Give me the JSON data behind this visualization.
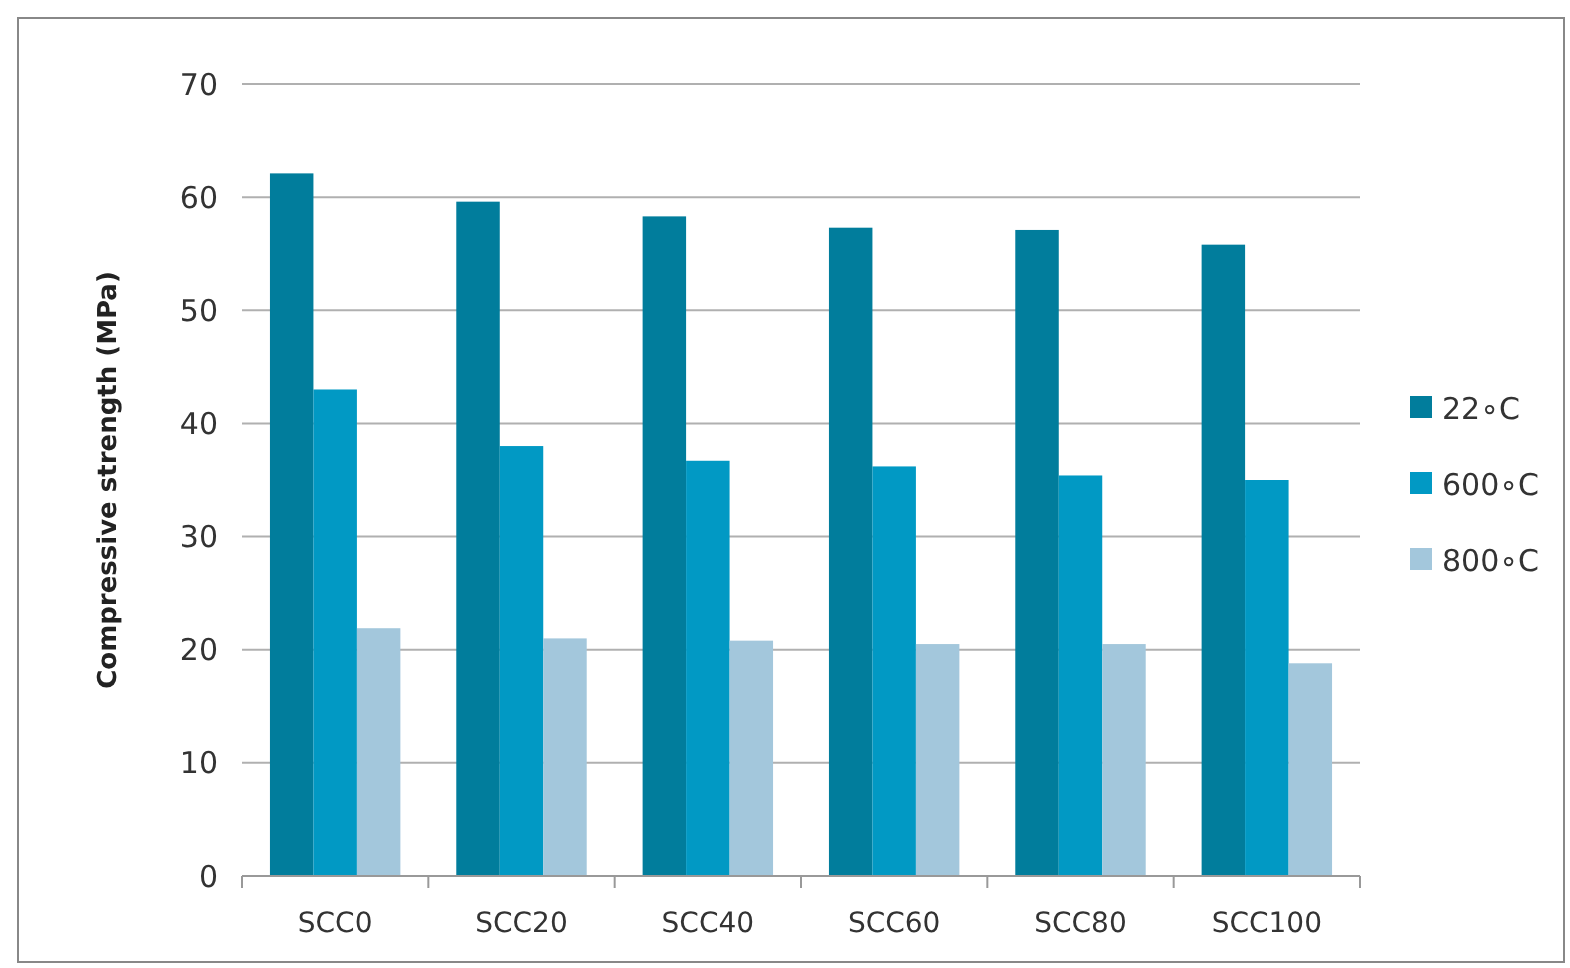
{
  "chart_data": {
    "type": "bar",
    "ylabel": "Compressive strength (MPa)",
    "categories": [
      "SCC0",
      "SCC20",
      "SCC40",
      "SCC60",
      "SCC80",
      "SCC100"
    ],
    "series": [
      {
        "name": "22∘C",
        "color": "#017d9c",
        "values": [
          62.1,
          59.6,
          58.3,
          57.3,
          57.1,
          55.8
        ]
      },
      {
        "name": "600∘C",
        "color": "#0199c4",
        "values": [
          43.0,
          38.0,
          36.7,
          36.2,
          35.4,
          35.0
        ]
      },
      {
        "name": "800∘C",
        "color": "#a3c7dc",
        "values": [
          21.9,
          21.0,
          20.8,
          20.5,
          20.5,
          18.8
        ]
      }
    ],
    "ylim": [
      0,
      70
    ],
    "yticks": [
      0,
      10,
      20,
      30,
      40,
      50,
      60,
      70
    ],
    "grid": "y",
    "legend": "right"
  }
}
